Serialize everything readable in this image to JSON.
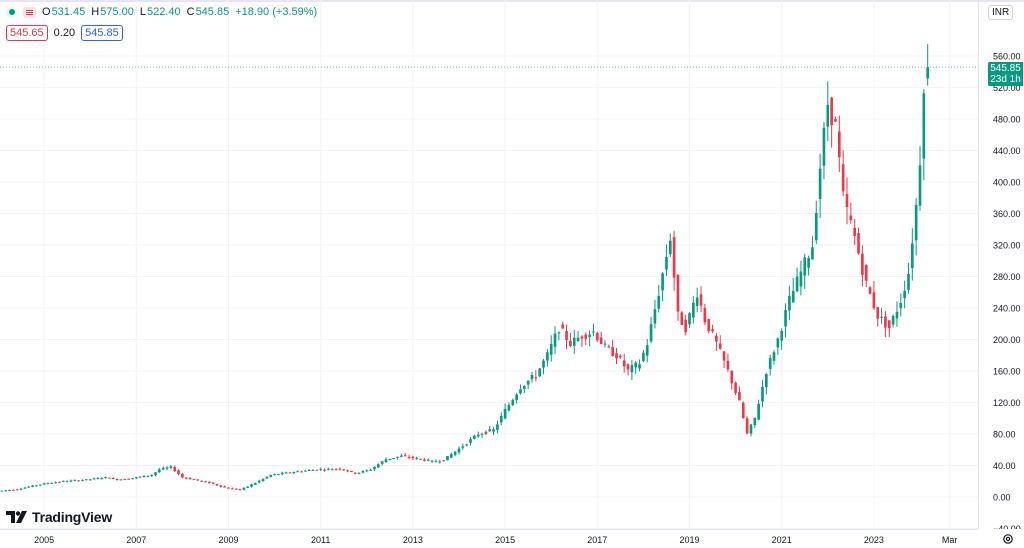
{
  "legend": {
    "open_label": "O",
    "open": "531.45",
    "high_label": "H",
    "high": "575.00",
    "low_label": "L",
    "low": "522.40",
    "close_label": "C",
    "close": "545.85",
    "change": "+18.90 (+3.59%)",
    "bid": "545.65",
    "spread": "0.20",
    "ask": "545.85"
  },
  "currency": "INR",
  "last_price_label": {
    "price": "545.85",
    "countdown": "23d 1h"
  },
  "logo_text": "TradingView",
  "colors": {
    "up": "#089981",
    "down": "#f23645",
    "grid": "#f0f3fa",
    "axis_text": "#131722"
  },
  "chart_data": {
    "type": "candlestick",
    "interval": "monthly",
    "y_ticks": [
      "560.00",
      "520.00",
      "480.00",
      "440.00",
      "400.00",
      "360.00",
      "320.00",
      "280.00",
      "240.00",
      "200.00",
      "160.00",
      "120.00",
      "80.00",
      "40.00",
      "0.00",
      "−40.00"
    ],
    "y_range": [
      -40,
      600
    ],
    "x_ticks": [
      "2005",
      "2007",
      "2009",
      "2011",
      "2013",
      "2015",
      "2017",
      "2019",
      "2021",
      "2023",
      "Mar"
    ],
    "x_range": [
      "2004-01",
      "2024-03"
    ],
    "last": {
      "open": 531.45,
      "high": 575.0,
      "low": 522.4,
      "close": 545.85
    },
    "series": [
      {
        "name": "close",
        "points": [
          [
            "2004-02",
            8
          ],
          [
            "2004-06",
            10
          ],
          [
            "2004-10",
            14
          ],
          [
            "2005-01",
            17
          ],
          [
            "2005-06",
            20
          ],
          [
            "2005-12",
            22
          ],
          [
            "2006-05",
            25
          ],
          [
            "2006-08",
            22
          ],
          [
            "2006-12",
            24
          ],
          [
            "2007-05",
            28
          ],
          [
            "2007-07",
            35
          ],
          [
            "2007-10",
            38
          ],
          [
            "2008-01",
            25
          ],
          [
            "2008-04",
            22
          ],
          [
            "2008-08",
            18
          ],
          [
            "2008-12",
            12
          ],
          [
            "2009-04",
            9
          ],
          [
            "2009-08",
            18
          ],
          [
            "2009-12",
            28
          ],
          [
            "2010-06",
            32
          ],
          [
            "2010-12",
            35
          ],
          [
            "2011-06",
            36
          ],
          [
            "2011-10",
            30
          ],
          [
            "2012-02",
            35
          ],
          [
            "2012-06",
            48
          ],
          [
            "2012-10",
            52
          ],
          [
            "2013-03",
            48
          ],
          [
            "2013-06",
            45
          ],
          [
            "2013-09",
            47
          ],
          [
            "2014-02",
            65
          ],
          [
            "2014-06",
            80
          ],
          [
            "2014-10",
            85
          ],
          [
            "2015-01",
            110
          ],
          [
            "2015-05",
            140
          ],
          [
            "2015-09",
            155
          ],
          [
            "2015-12",
            180
          ],
          [
            "2016-03",
            215
          ],
          [
            "2016-06",
            195
          ],
          [
            "2016-09",
            205
          ],
          [
            "2016-12",
            210
          ],
          [
            "2017-03",
            190
          ],
          [
            "2017-06",
            180
          ],
          [
            "2017-09",
            160
          ],
          [
            "2017-12",
            170
          ],
          [
            "2018-02",
            195
          ],
          [
            "2018-05",
            260
          ],
          [
            "2018-08",
            330
          ],
          [
            "2018-10",
            230
          ],
          [
            "2018-12",
            215
          ],
          [
            "2019-03",
            260
          ],
          [
            "2019-05",
            225
          ],
          [
            "2019-08",
            195
          ],
          [
            "2019-11",
            160
          ],
          [
            "2020-02",
            120
          ],
          [
            "2020-04",
            80
          ],
          [
            "2020-06",
            100
          ],
          [
            "2020-09",
            160
          ],
          [
            "2020-12",
            200
          ],
          [
            "2021-03",
            250
          ],
          [
            "2021-06",
            285
          ],
          [
            "2021-09",
            320
          ],
          [
            "2021-11",
            420
          ],
          [
            "2022-01",
            500
          ],
          [
            "2022-03",
            470
          ],
          [
            "2022-05",
            380
          ],
          [
            "2022-08",
            330
          ],
          [
            "2022-11",
            270
          ],
          [
            "2023-02",
            230
          ],
          [
            "2023-05",
            215
          ],
          [
            "2023-08",
            250
          ],
          [
            "2023-10",
            285
          ],
          [
            "2023-12",
            370
          ],
          [
            "2024-01",
            430
          ],
          [
            "2024-02",
            527
          ],
          [
            "2024-03",
            545.85
          ]
        ]
      }
    ]
  }
}
